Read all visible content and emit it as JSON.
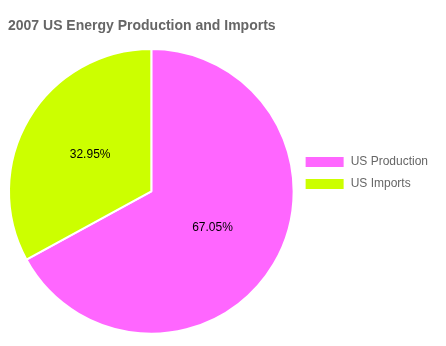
{
  "chart_data": {
    "type": "pie",
    "title": "2007 US Energy Production and Imports",
    "categories": [
      "US Production",
      "US Imports"
    ],
    "values": [
      67.05,
      32.95
    ],
    "value_labels": [
      "67.05%",
      "32.95%"
    ],
    "colors": [
      "#FF66FF",
      "#CCFF00"
    ],
    "data_labels": true,
    "legend": "right"
  }
}
